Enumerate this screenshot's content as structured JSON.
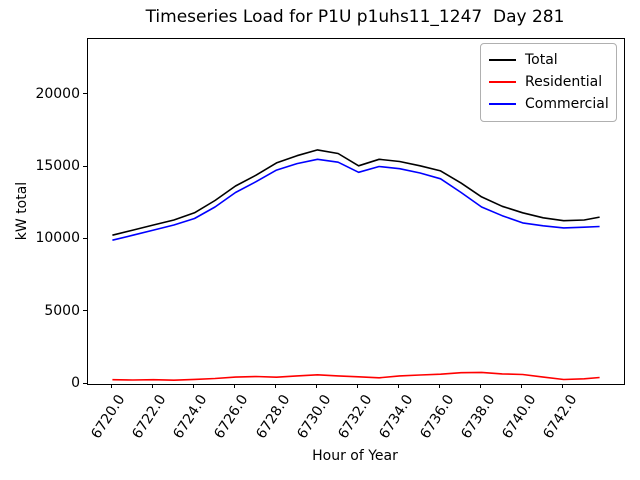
{
  "chart_data": {
    "type": "line",
    "title": "Timeseries Load for P1U p1uhs11_1247  Day 281",
    "xlabel": "Hour of Year",
    "ylabel": "kW total",
    "grid": false,
    "legend_position": "upper right",
    "xlim": [
      6718.81,
      6744.94
    ],
    "ylim": [
      0,
      23875
    ],
    "x_ticks": [
      6720,
      6722,
      6724,
      6726,
      6728,
      6730,
      6732,
      6734,
      6736,
      6738,
      6740,
      6742
    ],
    "x_tick_labels": [
      "6720.0",
      "6722.0",
      "6724.0",
      "6726.0",
      "6728.0",
      "6730.0",
      "6732.0",
      "6734.0",
      "6736.0",
      "6738.0",
      "6740.0",
      "6742.0"
    ],
    "y_ticks": [
      0,
      5000,
      10000,
      15000,
      20000
    ],
    "y_tick_labels": [
      "0",
      "5000",
      "10000",
      "15000",
      "20000"
    ],
    "x": [
      6720,
      6721,
      6722,
      6723,
      6724,
      6725,
      6726,
      6727,
      6728,
      6729,
      6730,
      6731,
      6732,
      6733,
      6734,
      6735,
      6736,
      6737,
      6738,
      6739,
      6740,
      6741,
      6742,
      6743,
      6743.75
    ],
    "series": [
      {
        "name": "Total",
        "color": "#000000",
        "values": [
          10300,
          10650,
          11000,
          11350,
          11850,
          12700,
          13700,
          14450,
          15300,
          15800,
          16200,
          15950,
          15100,
          15550,
          15400,
          15100,
          14750,
          13900,
          12950,
          12300,
          11850,
          11500,
          11300,
          11350,
          11550
        ]
      },
      {
        "name": "Residential",
        "color": "#ff0000",
        "values": [
          300,
          280,
          300,
          260,
          320,
          380,
          480,
          520,
          470,
          560,
          640,
          560,
          500,
          430,
          560,
          620,
          680,
          780,
          800,
          700,
          660,
          480,
          310,
          360,
          450
        ]
      },
      {
        "name": "Commercial",
        "color": "#0000ff",
        "values": [
          9950,
          10300,
          10650,
          11000,
          11450,
          12250,
          13250,
          14000,
          14800,
          15250,
          15550,
          15350,
          14650,
          15050,
          14900,
          14600,
          14200,
          13250,
          12250,
          11650,
          11150,
          10950,
          10800,
          10850,
          10900
        ]
      }
    ]
  }
}
